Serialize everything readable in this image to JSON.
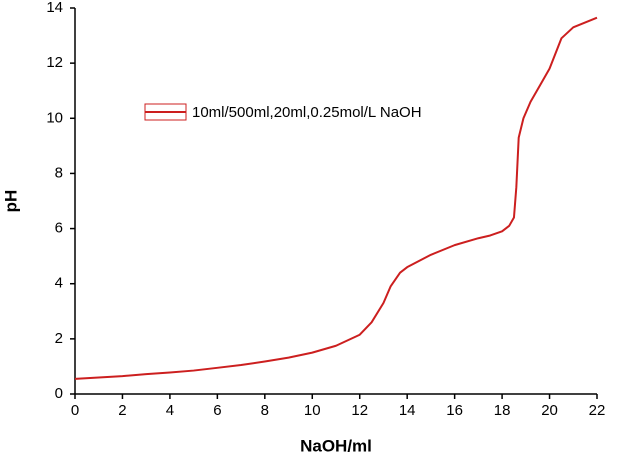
{
  "chart_data": {
    "type": "line",
    "x_label": "NaOH/ml",
    "y_label": "pH",
    "x": [
      0,
      1,
      2,
      3,
      4,
      5,
      6,
      7,
      8,
      9,
      10,
      11,
      12,
      12.5,
      13,
      13.3,
      13.7,
      14,
      15,
      16,
      17,
      17.5,
      18,
      18.3,
      18.5,
      18.6,
      18.7,
      18.9,
      19.2,
      19.6,
      20,
      20.5,
      21,
      22
    ],
    "series": [
      {
        "name": "10ml/500ml,20ml,0.25mol/L NaOH",
        "color": "#cc1f1f",
        "values": [
          0.55,
          0.6,
          0.65,
          0.72,
          0.78,
          0.85,
          0.95,
          1.05,
          1.18,
          1.32,
          1.5,
          1.75,
          2.15,
          2.6,
          3.3,
          3.9,
          4.4,
          4.6,
          5.05,
          5.4,
          5.65,
          5.75,
          5.9,
          6.1,
          6.4,
          7.5,
          9.3,
          10.0,
          10.6,
          11.2,
          11.8,
          12.9,
          13.3,
          13.65
        ]
      }
    ],
    "xlim": [
      0,
      22
    ],
    "xticks": [
      0,
      2,
      4,
      6,
      8,
      10,
      12,
      14,
      16,
      18,
      20,
      22
    ],
    "ylim": [
      0,
      14
    ],
    "yticks": [
      0,
      2,
      4,
      6,
      8,
      10,
      12,
      14
    ],
    "legend": "upper left"
  }
}
